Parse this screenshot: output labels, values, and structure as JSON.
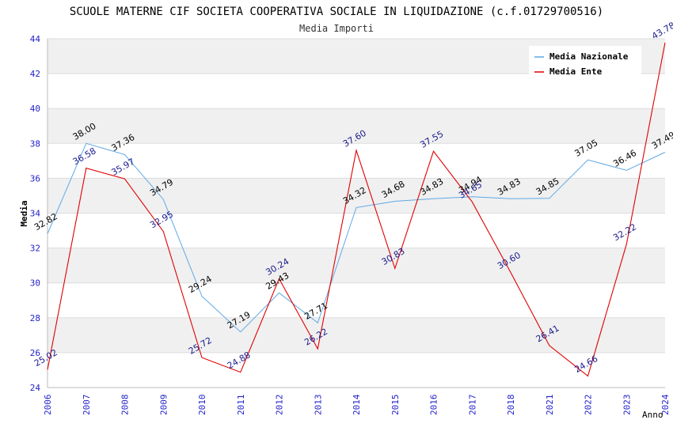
{
  "chart_data": {
    "type": "line",
    "title": "SCUOLE MATERNE CIF SOCIETA COOPERATIVA SOCIALE IN LIQUIDAZIONE (c.f.01729700516)",
    "subtitle": "Media Importi",
    "xlabel": "Anno",
    "ylabel": "Media",
    "ylim": [
      24,
      44
    ],
    "yticks": [
      "24",
      "26",
      "28",
      "30",
      "32",
      "34",
      "36",
      "38",
      "40",
      "42",
      "44"
    ],
    "categories": [
      "2006",
      "2007",
      "2008",
      "2009",
      "2010",
      "2011",
      "2012",
      "2013",
      "2014",
      "2015",
      "2016",
      "2017",
      "2018",
      "2021",
      "2022",
      "2023",
      "2024"
    ],
    "grid": true,
    "legend_position": "top-right",
    "series": [
      {
        "name": "Media Nazionale",
        "color": "#5ea8e6",
        "label_color": "#000000",
        "values": [
          32.82,
          38.0,
          37.36,
          34.79,
          29.24,
          27.19,
          29.43,
          27.71,
          34.32,
          34.68,
          34.83,
          34.94,
          34.83,
          34.85,
          37.05,
          36.46,
          37.49
        ],
        "labels": [
          "32.82",
          "38.00",
          "37.36",
          "34.79",
          "29.24",
          "27.19",
          "29.43",
          "27.71",
          "34.32",
          "34.68",
          "34.83",
          "34.94",
          "34.83",
          "34.85",
          "37.05",
          "36.46",
          "37.49"
        ]
      },
      {
        "name": "Media Ente",
        "color": "#e00000",
        "label_color": "#1a1a8c",
        "values": [
          25.02,
          36.58,
          35.97,
          32.95,
          25.72,
          24.88,
          30.24,
          26.22,
          37.6,
          30.83,
          37.55,
          34.65,
          30.6,
          26.41,
          24.66,
          32.22,
          43.78
        ],
        "labels": [
          "25.02",
          "36.58",
          "35.97",
          "32.95",
          "25.72",
          "24.88",
          "30.24",
          "26.22",
          "37.60",
          "30.83",
          "37.55",
          "34.65",
          "30.60",
          "26.41",
          "24.66",
          "32.22",
          "43.78"
        ]
      }
    ]
  }
}
